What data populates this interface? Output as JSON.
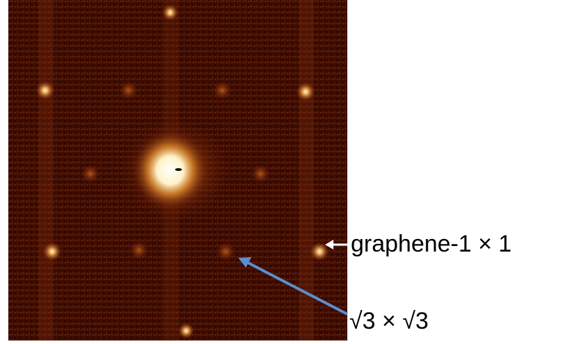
{
  "annotations": {
    "graphene": "graphene-1 × 1",
    "sqrt3": "√3 × √3"
  }
}
